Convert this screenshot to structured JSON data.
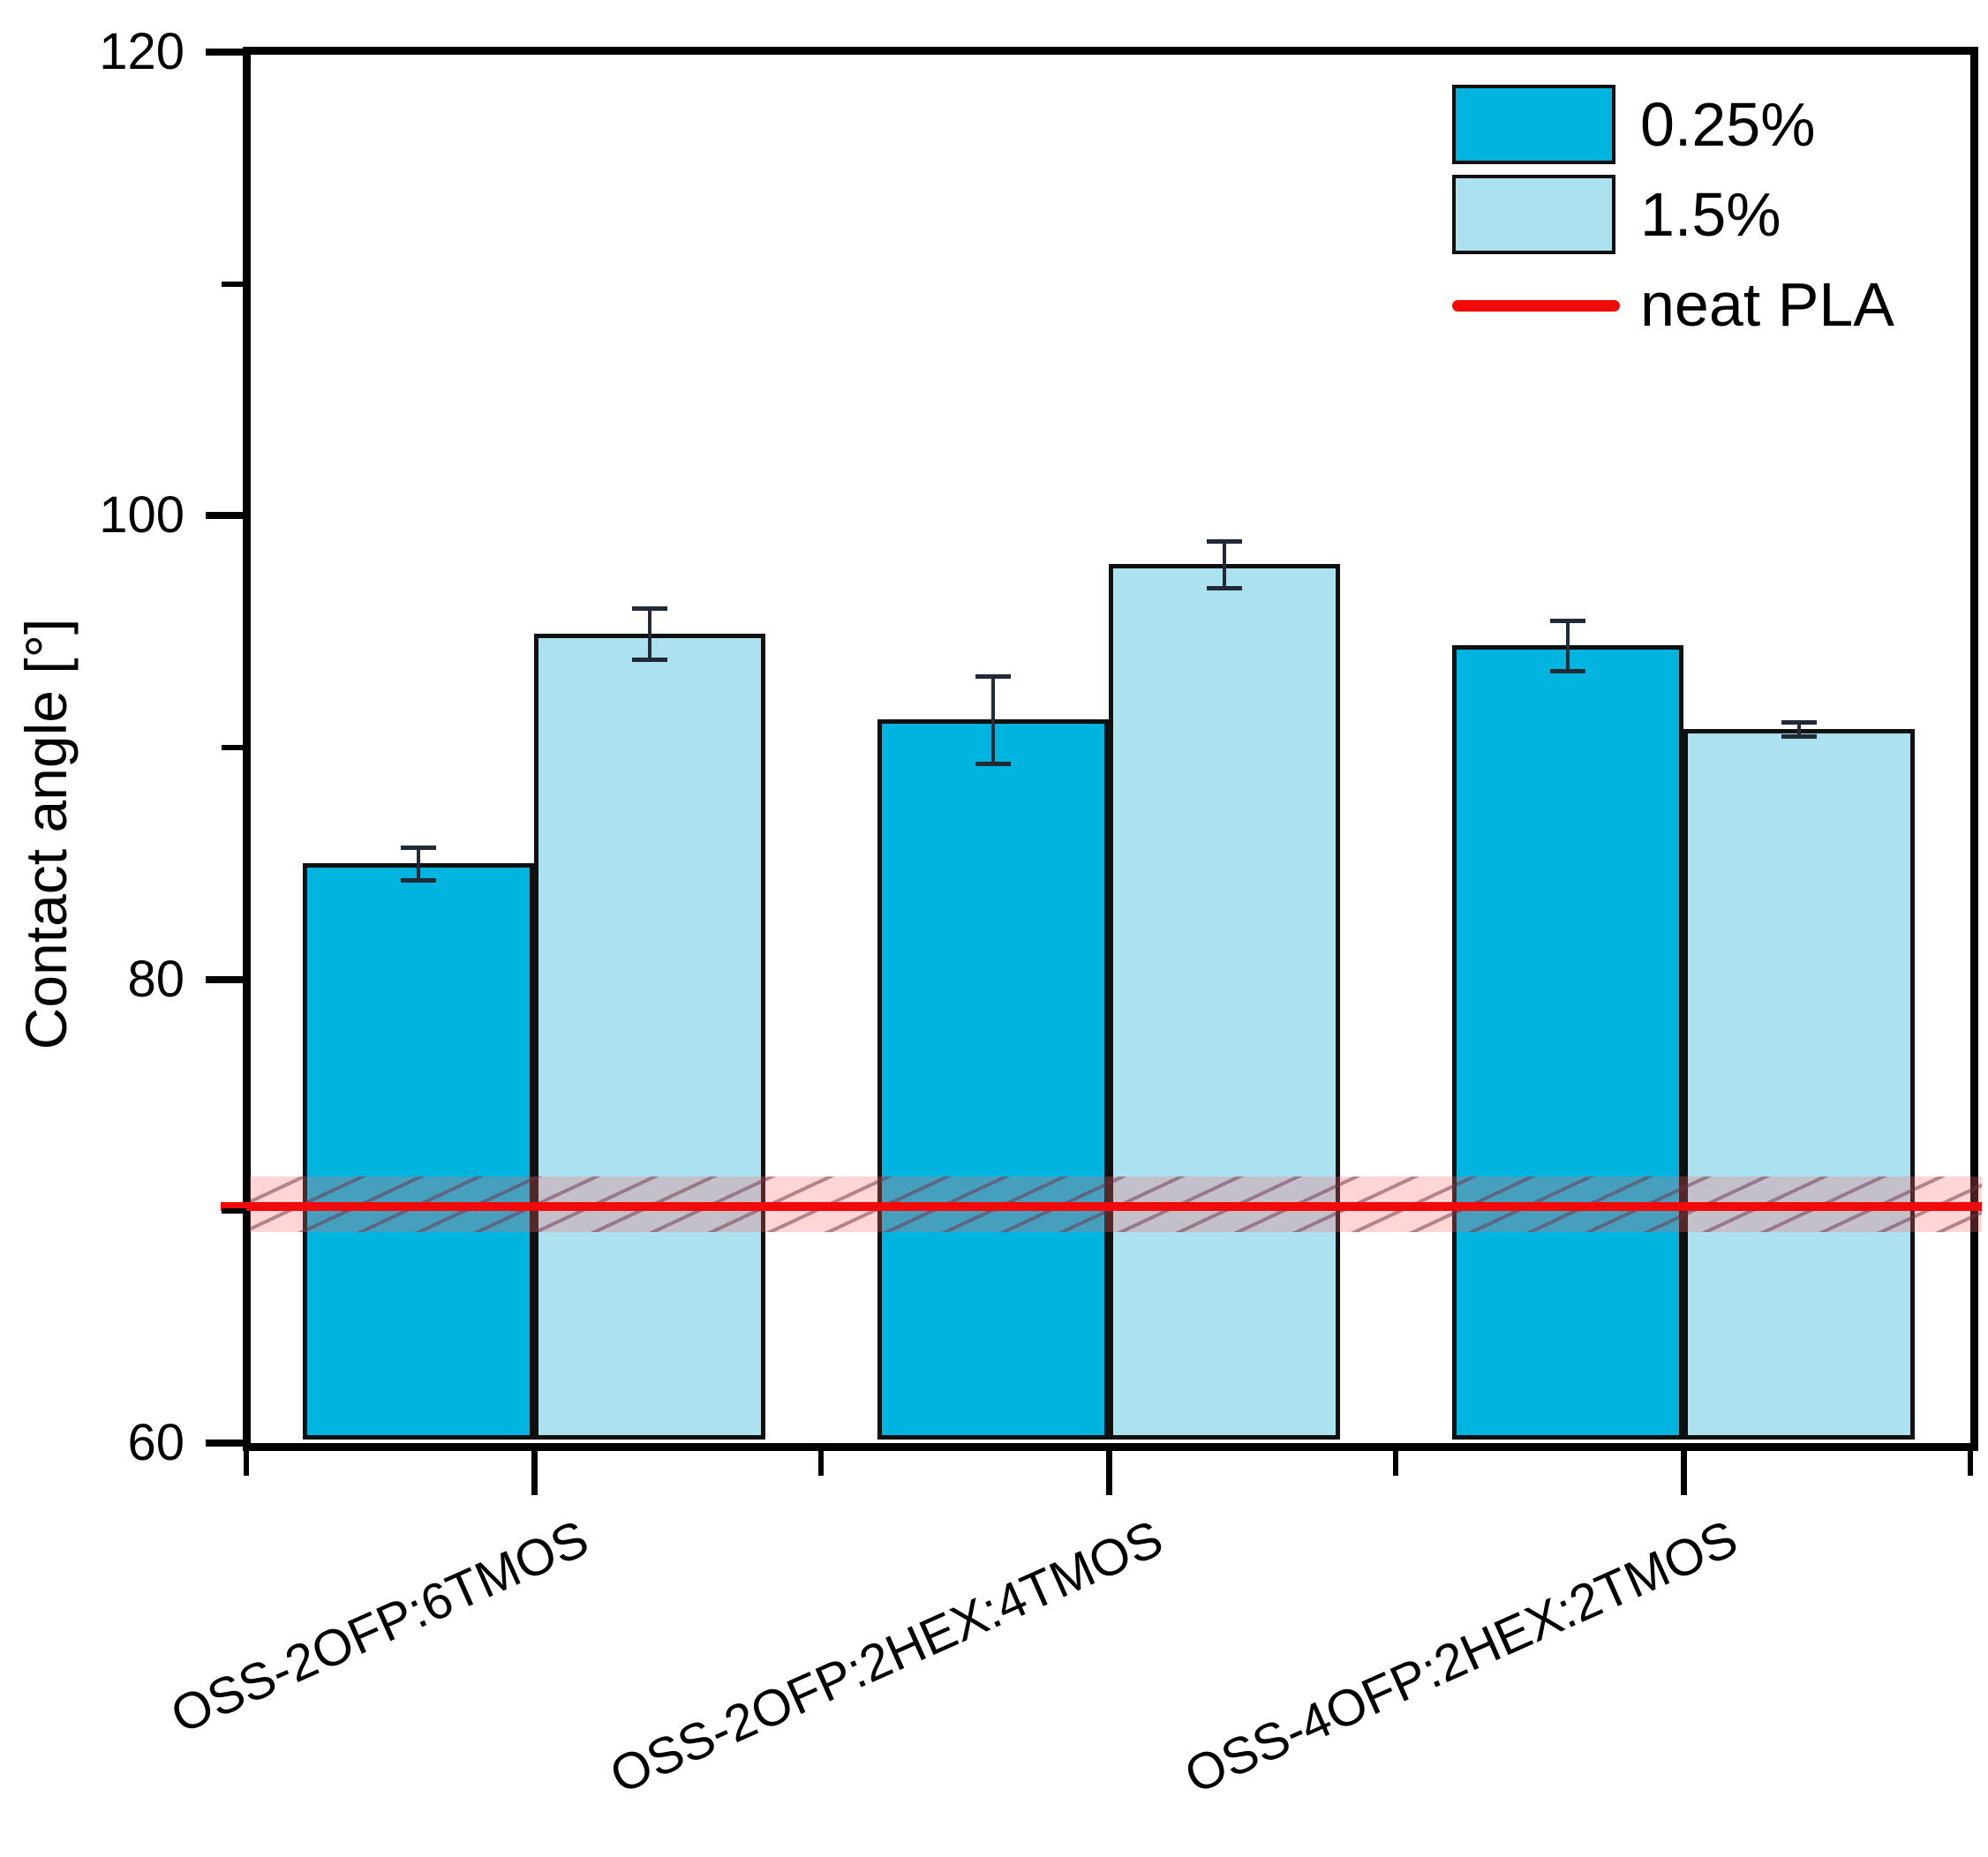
{
  "figure": {
    "y_axis": {
      "label": "Contact angle [°]",
      "min": 60,
      "max": 120,
      "major_ticks": [
        120,
        100,
        80,
        60
      ],
      "minor_ticks": [
        110,
        90,
        70
      ]
    },
    "legend": {
      "position": "top-right",
      "entries": [
        {
          "label": "0.25%",
          "marker": "swatch",
          "color": "#00B4E0"
        },
        {
          "label": "1.5%",
          "marker": "swatch",
          "color": "#ACE2F0"
        },
        {
          "label": "neat PLA",
          "marker": "line",
          "color": "#F00A0A"
        }
      ]
    }
  },
  "chart_data": {
    "type": "bar",
    "title": "",
    "xlabel": "",
    "ylabel": "Contact angle [°]",
    "ylim": [
      60,
      120
    ],
    "grid": false,
    "legend_position": "top-right",
    "categories": [
      "OSS-2OFP:6TMOS",
      "OSS-2OFP:2HEX:4TMOS",
      "OSS-4OFP:2HEX:2TMOS"
    ],
    "series": [
      {
        "name": "0.25%",
        "color": "#00B4E0",
        "values": [
          85.0,
          91.2,
          94.4
        ],
        "errors": [
          0.7,
          1.9,
          1.1
        ]
      },
      {
        "name": "1.5%",
        "color": "#ACE2F0",
        "values": [
          94.9,
          97.9,
          90.8
        ],
        "errors": [
          1.1,
          1.0,
          0.3
        ]
      }
    ],
    "reference_line": {
      "name": "neat PLA",
      "value": 70.2,
      "band": [
        69.1,
        71.5
      ],
      "color": "#F00A0A"
    }
  }
}
